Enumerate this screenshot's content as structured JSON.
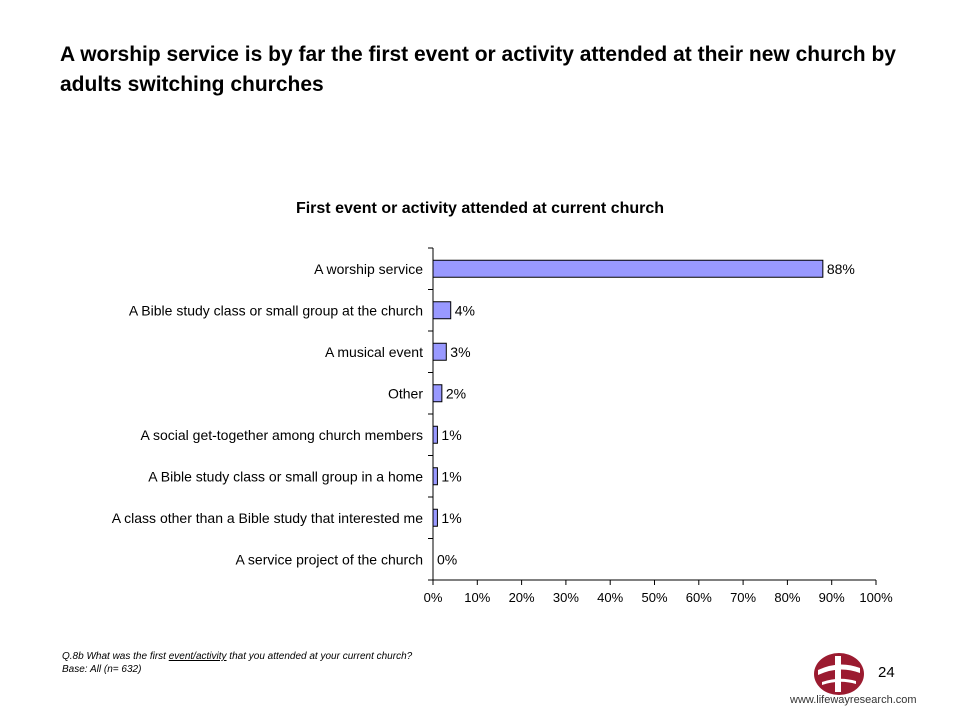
{
  "slide": {
    "title": "A worship service is by far the first event or activity attended at their new church by adults switching churches",
    "footnote_prefix": "Q.8b  What was the first ",
    "footnote_underlined": "event/activity",
    "footnote_suffix": " that you attended at your current church?",
    "base": "Base: All (n= 632)",
    "page_number": "24",
    "website": "www.lifewayresearch.com",
    "logo_icon": "lifeway-research-logo-icon"
  },
  "colors": {
    "bar_fill": "#9999ff",
    "bar_stroke": "#000000",
    "logo": "#9b1b30"
  },
  "chart_data": {
    "type": "bar",
    "orientation": "horizontal",
    "title": "First event or activity attended at current church",
    "categories": [
      "A worship service",
      "A Bible study class or small group at the church",
      "A musical event",
      "Other",
      "A social get-together among church members",
      "A Bible study class or small group in a home",
      "A class other than a Bible study that interested me",
      "A service project of the church"
    ],
    "values": [
      88,
      4,
      3,
      2,
      1,
      1,
      1,
      0
    ],
    "data_labels": [
      "88%",
      "4%",
      "3%",
      "2%",
      "1%",
      "1%",
      "1%",
      "0%"
    ],
    "xlim": [
      0,
      100
    ],
    "ticks": [
      "0%",
      "10%",
      "20%",
      "30%",
      "40%",
      "50%",
      "60%",
      "70%",
      "80%",
      "90%",
      "100%"
    ],
    "grid": false,
    "legend": "none"
  }
}
